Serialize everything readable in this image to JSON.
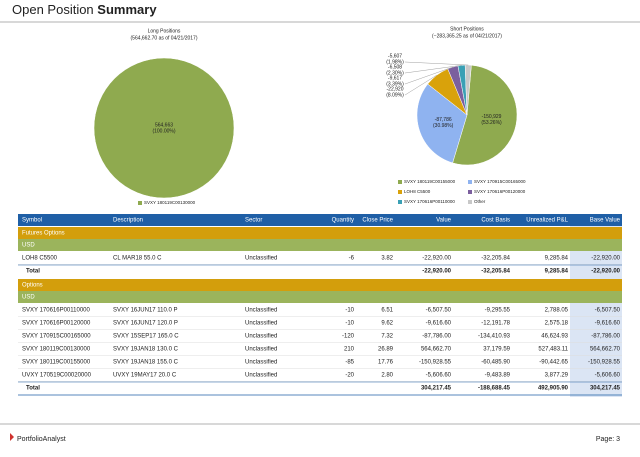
{
  "header": {
    "title_prefix": "Open Position",
    "title_bold": "Summary"
  },
  "long_chart": {
    "type": "pie",
    "title": "Long Positions",
    "subtitle": "(564,662.70 as of 04/21/2017)",
    "slices": [
      {
        "name": "SVXY 180119C00130000",
        "value": 564663,
        "value_label": "564,663",
        "percent": 100.0,
        "percent_label": "(100.00%)",
        "color": "#8faa4f"
      }
    ]
  },
  "short_chart": {
    "type": "pie",
    "title": "Short Positions",
    "subtitle": "(−283,365.25 as of 04/21/2017)",
    "slices": [
      {
        "name": "SVXY 180119C00155000",
        "value": -150929,
        "value_label": "-150,929",
        "percent": 53.26,
        "percent_label": "(53.26%)",
        "color": "#8faa4f"
      },
      {
        "name": "SVXY 170915C00165000",
        "value": -87786,
        "value_label": "-87,786",
        "percent": 30.98,
        "percent_label": "(30.98%)",
        "color": "#8fb3f0"
      },
      {
        "name": "LOH8 C5500",
        "value": -22920,
        "value_label": "-22,920",
        "percent": 8.09,
        "percent_label": "(8.09%)",
        "color": "#d9a20b"
      },
      {
        "name": "SVXY 170616P00120000",
        "value": -9617,
        "value_label": "-9,617",
        "percent": 3.39,
        "percent_label": "(3.39%)",
        "color": "#7b5f9e"
      },
      {
        "name": "SVXY 170616P00110000",
        "value": -6508,
        "value_label": "-6,508",
        "percent": 2.3,
        "percent_label": "(2.30%)",
        "color": "#3aa0b5"
      },
      {
        "name": "Other",
        "value": -5607,
        "value_label": "-5,607",
        "percent": 1.98,
        "percent_label": "(1.98%)",
        "color": "#c8c8c8"
      }
    ]
  },
  "table": {
    "columns": [
      "Symbol",
      "Description",
      "Sector",
      "Quantity",
      "Close Price",
      "Value",
      "Cost Basis",
      "Unrealized P&L",
      "Base Value"
    ],
    "sections": [
      {
        "name": "Futures Options",
        "currency": "USD",
        "rows": [
          [
            "LOH8 C5500",
            "CL MAR18 55.0 C",
            "Unclassified",
            "-6",
            "3.82",
            "-22,920.00",
            "-32,205.84",
            "9,285.84",
            "-22,920.00"
          ]
        ],
        "total": {
          "label": "Total",
          "values": [
            "-22,920.00",
            "-32,205.84",
            "9,285.84",
            "-22,920.00"
          ]
        }
      },
      {
        "name": "Options",
        "currency": "USD",
        "rows": [
          [
            "SVXY 170616P00110000",
            "SVXY 16JUN17 110.0 P",
            "Unclassified",
            "-10",
            "6.51",
            "-6,507.50",
            "-9,295.55",
            "2,788.05",
            "-6,507.50"
          ],
          [
            "SVXY 170616P00120000",
            "SVXY 16JUN17 120.0 P",
            "Unclassified",
            "-10",
            "9.62",
            "-9,616.60",
            "-12,191.78",
            "2,575.18",
            "-9,616.60"
          ],
          [
            "SVXY 170915C00165000",
            "SVXY 15SEP17 165.0 C",
            "Unclassified",
            "-120",
            "7.32",
            "-87,786.00",
            "-134,410.93",
            "46,624.93",
            "-87,786.00"
          ],
          [
            "SVXY 180119C00130000",
            "SVXY 19JAN18 130.0 C",
            "Unclassified",
            "210",
            "26.89",
            "564,662.70",
            "37,179.59",
            "527,483.11",
            "564,662.70"
          ],
          [
            "SVXY 180119C00155000",
            "SVXY 19JAN18 155.0 C",
            "Unclassified",
            "-85",
            "17.76",
            "-150,928.55",
            "-60,485.90",
            "-90,442.65",
            "-150,928.55"
          ],
          [
            "UVXY 170519C00020000",
            "UVXY 19MAY17 20.0 C",
            "Unclassified",
            "-20",
            "2.80",
            "-5,606.60",
            "-9,483.89",
            "3,877.29",
            "-5,606.60"
          ]
        ],
        "total": {
          "label": "Total",
          "values": [
            "304,217.45",
            "-188,688.45",
            "492,905.90",
            "304,217.45"
          ]
        }
      }
    ]
  },
  "footer": {
    "brand": "PortfolioAnalyst",
    "page": "Page: 3"
  }
}
